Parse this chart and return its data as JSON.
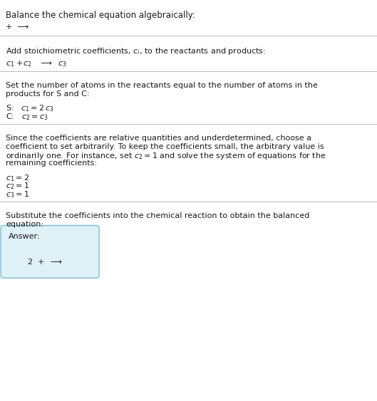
{
  "title": "Balance the chemical equation algebraically:",
  "line1": "+  ⟶",
  "section1_header": "Add stoichiometric coefficients, $c_i$, to the reactants and products:",
  "section2_header_l1": "Set the number of atoms in the reactants equal to the number of atoms in the",
  "section2_header_l2": "products for S and C:",
  "section2_S": "S:   $c_1 = 2\\,c_3$",
  "section2_C": "C:   $c_2 = c_3$",
  "section3_header_l1": "Since the coefficients are relative quantities and underdetermined, choose a",
  "section3_header_l2": "coefficient to set arbitrarily. To keep the coefficients small, the arbitrary value is",
  "section3_header_l3": "ordinarily one. For instance, set $c_2 = 1$ and solve the system of equations for the",
  "section3_header_l4": "remaining coefficients:",
  "section3_c1": "$c_1 = 2$",
  "section3_c2": "$c_2 = 1$",
  "section3_c3": "$c_3 = 1$",
  "section4_header_l1": "Substitute the coefficients into the chemical reaction to obtain the balanced",
  "section4_header_l2": "equation:",
  "answer_label": "Answer:",
  "answer_eq": "$2$  +  $\\longrightarrow$",
  "bg_color": "#ffffff",
  "text_color": "#1a1a1a",
  "box_bg": "#dff0f7",
  "box_border": "#7bbdd4",
  "divider_color": "#bbbbbb",
  "fs_title": 8.5,
  "fs_body": 8.0,
  "fs_math": 8.0
}
